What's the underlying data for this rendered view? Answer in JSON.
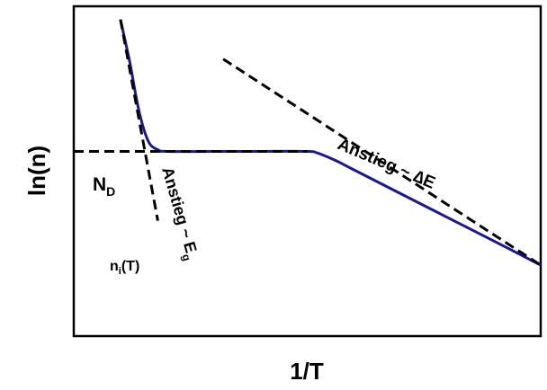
{
  "chart_data": {
    "type": "line",
    "title": "",
    "xlabel": "1/T",
    "ylabel": "ln(n)",
    "grid": false,
    "legend": "none",
    "series": [
      {
        "color": "#1a1a8c",
        "style": "solid",
        "x": [
          0.1,
          0.12,
          0.14,
          0.16,
          0.18,
          0.2,
          0.3,
          0.4,
          0.5,
          0.52,
          0.56,
          0.6,
          0.7,
          0.8,
          0.9,
          1.0
        ],
        "y": [
          0.96,
          0.83,
          0.68,
          0.59,
          0.565,
          0.56,
          0.56,
          0.56,
          0.56,
          0.556,
          0.533,
          0.504,
          0.432,
          0.36,
          0.288,
          0.215
        ]
      },
      {
        "color": "#000000",
        "style": "dashed",
        "x": [
          0.0,
          0.5
        ],
        "y": [
          0.56,
          0.56
        ]
      },
      {
        "color": "#000000",
        "style": "dashed",
        "x": [
          0.32,
          1.0
        ],
        "y": [
          0.84,
          0.215
        ]
      },
      {
        "color": "#000000",
        "style": "dashed",
        "x": [
          0.1,
          0.18
        ],
        "y": [
          0.96,
          0.35
        ]
      }
    ],
    "annotations": {
      "nd_main": "N",
      "nd_sub": "D",
      "ni_main": "n",
      "ni_sub": "i",
      "ni_tail": "(T)",
      "eg_main": "Anstieg ~ E",
      "eg_sub": "g",
      "de": "Anstieg ~ ∆E"
    }
  }
}
